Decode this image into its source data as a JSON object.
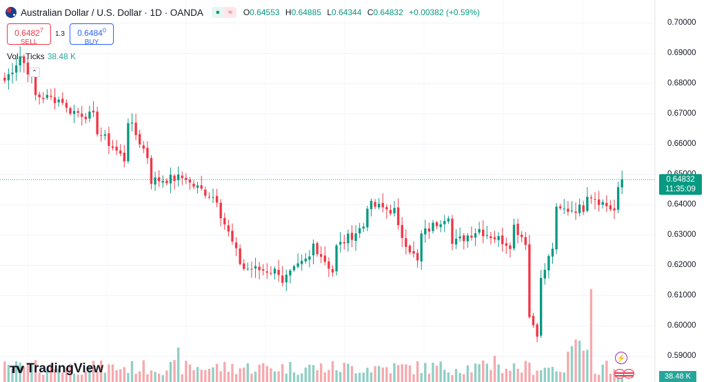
{
  "header": {
    "symbol_title": "Australian Dollar / U.S. Dollar · 1D · OANDA",
    "ohlc": {
      "o_label": "O",
      "o": "0.64553",
      "h_label": "H",
      "h": "0.64885",
      "l_label": "L",
      "l": "0.64344",
      "c_label": "C",
      "c": "0.64832",
      "change": "+0.00382 (+0.59%)"
    }
  },
  "trade": {
    "sell_price": "0.6482",
    "sell_pip": "7",
    "sell_label": "SELL",
    "spread": "1.3",
    "buy_price": "0.6484",
    "buy_pip": "0",
    "buy_label": "BUY"
  },
  "volume_legend": {
    "label": "Vol · Ticks",
    "value": "38.48 K"
  },
  "price_tag": {
    "price": "0.64832",
    "countdown": "11:35:09"
  },
  "volume_tag": "38.48 K",
  "logo_text": "TradingView",
  "icons": {
    "bolt": "lightning-icon",
    "events": "us-flag-event-icon",
    "symbol": "australia-flag-icon"
  },
  "colors": {
    "up": "#089981",
    "down": "#f23645",
    "vol_up": "#8fcfc4",
    "vol_down": "#f5a9ae"
  },
  "chart_data": {
    "type": "candlestick",
    "timeframe": "1D",
    "ylim": [
      0.585,
      0.702
    ],
    "y_ticks": [
      "0.70000",
      "0.69000",
      "0.68000",
      "0.67000",
      "0.66000",
      "0.65000",
      "0.64000",
      "0.63000",
      "0.62000",
      "0.61000",
      "0.60000",
      "0.59000"
    ],
    "y_tick_values": [
      0.7,
      0.69,
      0.68,
      0.67,
      0.66,
      0.65,
      0.64,
      0.63,
      0.62,
      0.61,
      0.6,
      0.59
    ],
    "last_close": 0.64832,
    "segments": [
      [
        0.681,
        0.6868,
        4
      ],
      [
        0.6892,
        0.682,
        4
      ],
      [
        0.676,
        0.6745,
        8
      ],
      [
        0.6715,
        0.669,
        8
      ],
      [
        0.6645,
        0.655,
        8
      ],
      [
        0.668,
        0.656,
        6
      ],
      [
        0.648,
        0.649,
        10
      ],
      [
        0.647,
        0.642,
        8
      ],
      [
        0.637,
        0.621,
        6
      ],
      [
        0.619,
        0.618,
        10
      ],
      [
        0.615,
        0.6225,
        8
      ],
      [
        0.627,
        0.618,
        6
      ],
      [
        0.626,
        0.633,
        8
      ],
      [
        0.64,
        0.638,
        8
      ],
      [
        0.632,
        0.621,
        6
      ],
      [
        0.63,
        0.637,
        8
      ],
      [
        0.627,
        0.632,
        8
      ],
      [
        0.631,
        0.627,
        8
      ],
      [
        0.633,
        0.628,
        4
      ],
      [
        0.603,
        0.598,
        3
      ],
      [
        0.615,
        0.626,
        4
      ],
      [
        0.638,
        0.639,
        8
      ],
      [
        0.644,
        0.638,
        8
      ],
      [
        0.6445,
        0.64553,
        2
      ]
    ],
    "volume_ticks": "38.48 K"
  }
}
